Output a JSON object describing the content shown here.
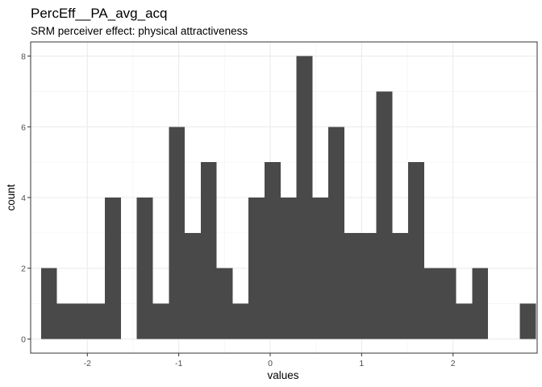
{
  "chart_data": {
    "type": "bar",
    "title": "PercEff__PA_avg_acq",
    "subtitle": "SRM perceiver effect: physical attractiveness",
    "xlabel": "values",
    "ylabel": "count",
    "bin_width": 0.1746,
    "bin_start": -2.506,
    "counts": [
      2,
      1,
      1,
      1,
      4,
      0,
      4,
      1,
      6,
      3,
      5,
      2,
      1,
      4,
      5,
      4,
      8,
      4,
      6,
      3,
      3,
      7,
      3,
      5,
      2,
      2,
      1,
      2,
      0,
      0,
      1
    ],
    "xlim": [
      -2.62,
      2.92
    ],
    "ylim": [
      -0.4,
      8.4
    ],
    "x_ticks": [
      -2,
      -1,
      0,
      1,
      2
    ],
    "x_tick_labels": [
      "-2",
      "-1",
      "0",
      "1",
      "2"
    ],
    "y_ticks": [
      0,
      2,
      4,
      6,
      8
    ],
    "y_tick_labels": [
      "0",
      "2",
      "4",
      "6",
      "8"
    ],
    "bar_color": "#494949",
    "grid": true
  }
}
